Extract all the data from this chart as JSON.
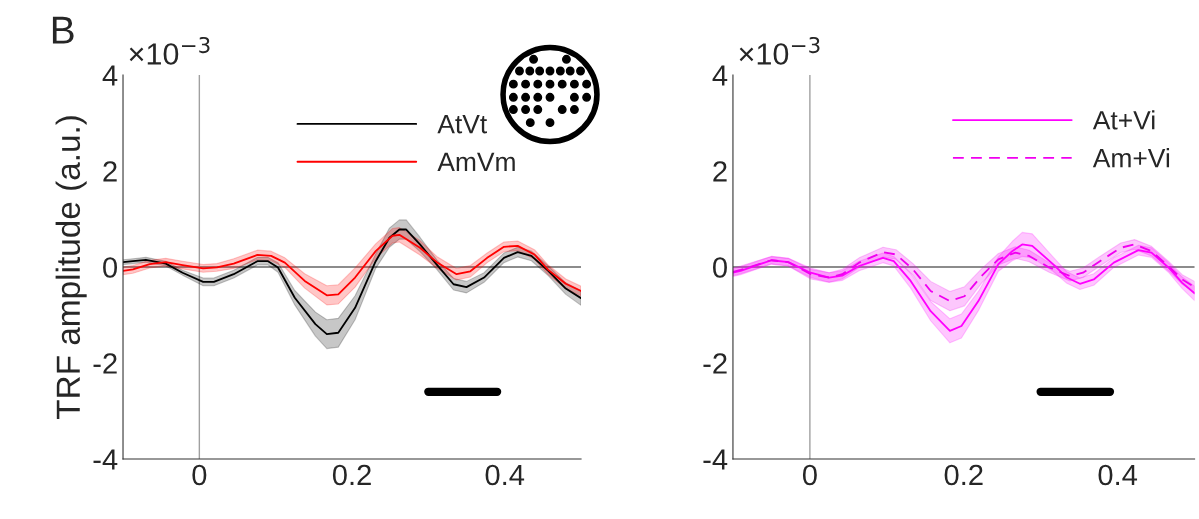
{
  "chart_data": [
    {
      "type": "line",
      "title": "B",
      "ylabel": "TRF amplitude (a.u.)",
      "annotations": [
        "×10$^{−3}$"
      ],
      "xlim": [
        -0.1,
        0.5
      ],
      "xticks": [
        0,
        0.2,
        0.4
      ],
      "ylim": [
        -4,
        4
      ],
      "yticks": [
        -4,
        -2,
        0,
        2,
        4
      ],
      "grid": false,
      "legend": "top",
      "ref_lines": [
        {
          "axis": "x",
          "value": 0,
          "color": "#a0a0a0"
        },
        {
          "axis": "y",
          "value": 0,
          "color": "#8c8c8c"
        }
      ],
      "series": [
        {
          "name": "AtVt",
          "color": "#000000",
          "x": [
            -0.1,
            -0.087,
            -0.07,
            -0.044,
            -0.022,
            0.005,
            0.019,
            0.045,
            0.076,
            0.09,
            0.103,
            0.125,
            0.152,
            0.167,
            0.182,
            0.204,
            0.231,
            0.249,
            0.262,
            0.271,
            0.289,
            0.311,
            0.333,
            0.35,
            0.373,
            0.399,
            0.417,
            0.435,
            0.457,
            0.48,
            0.5
          ],
          "values": [
            0.1,
            0.12,
            0.15,
            0.07,
            -0.12,
            -0.31,
            -0.31,
            -0.15,
            0.12,
            0.12,
            -0.01,
            -0.64,
            -1.19,
            -1.4,
            -1.37,
            -0.85,
            0.12,
            0.61,
            0.78,
            0.78,
            0.47,
            0.05,
            -0.36,
            -0.42,
            -0.22,
            0.19,
            0.31,
            0.23,
            -0.08,
            -0.45,
            -0.65
          ],
          "lower": [
            0.05,
            0.07,
            0.1,
            0.02,
            -0.17,
            -0.39,
            -0.39,
            -0.23,
            0.04,
            0.04,
            -0.11,
            -0.79,
            -1.44,
            -1.7,
            -1.67,
            -1.1,
            -0.03,
            0.41,
            0.58,
            0.58,
            0.32,
            -0.05,
            -0.48,
            -0.54,
            -0.32,
            0.09,
            0.21,
            0.13,
            -0.18,
            -0.57,
            -0.8
          ],
          "upper": [
            0.15,
            0.17,
            0.2,
            0.12,
            -0.07,
            -0.23,
            -0.23,
            -0.07,
            0.2,
            0.2,
            0.09,
            -0.49,
            -0.94,
            -1.1,
            -1.07,
            -0.6,
            0.27,
            0.81,
            0.98,
            0.98,
            0.62,
            0.15,
            -0.24,
            -0.3,
            -0.12,
            0.29,
            0.41,
            0.33,
            0.02,
            -0.33,
            -0.5
          ]
        },
        {
          "name": "AmVm",
          "color": "#ff0000",
          "x": [
            -0.1,
            -0.087,
            -0.065,
            -0.044,
            -0.022,
            0.005,
            0.023,
            0.045,
            0.076,
            0.094,
            0.112,
            0.138,
            0.167,
            0.182,
            0.204,
            0.231,
            0.253,
            0.262,
            0.289,
            0.311,
            0.337,
            0.355,
            0.377,
            0.399,
            0.417,
            0.439,
            0.457,
            0.48,
            0.5
          ],
          "values": [
            -0.08,
            -0.05,
            0.06,
            0.1,
            0.04,
            -0.03,
            -0.01,
            0.07,
            0.25,
            0.23,
            0.09,
            -0.29,
            -0.59,
            -0.57,
            -0.22,
            0.33,
            0.65,
            0.67,
            0.4,
            0.1,
            -0.15,
            -0.09,
            0.19,
            0.42,
            0.44,
            0.26,
            -0.06,
            -0.35,
            -0.5
          ],
          "lower": [
            -0.16,
            -0.13,
            -0.02,
            0.02,
            -0.04,
            -0.11,
            -0.09,
            -0.03,
            0.15,
            0.13,
            -0.01,
            -0.44,
            -0.79,
            -0.77,
            -0.42,
            0.18,
            0.5,
            0.52,
            0.25,
            -0.02,
            -0.27,
            -0.21,
            0.09,
            0.32,
            0.34,
            0.16,
            -0.16,
            -0.45,
            -0.6
          ],
          "upper": [
            0,
            0.03,
            0.14,
            0.18,
            0.12,
            0.05,
            0.07,
            0.17,
            0.35,
            0.33,
            0.19,
            -0.14,
            -0.39,
            -0.37,
            -0.02,
            0.48,
            0.8,
            0.82,
            0.55,
            0.22,
            -0.03,
            0.03,
            0.29,
            0.52,
            0.54,
            0.36,
            0.04,
            -0.25,
            -0.4
          ]
        },
        {
          "color": "#000000",
          "x": [
            0.3,
            0.39
          ],
          "values": [
            -2.6,
            -2.6
          ]
        }
      ]
    },
    {
      "type": "line",
      "annotations": [
        "×10$^{−3}$"
      ],
      "xlim": [
        -0.1,
        0.5
      ],
      "xticks": [
        0,
        0.2,
        0.4
      ],
      "ylim": [
        -4,
        4
      ],
      "yticks": [
        -4,
        -2,
        0,
        2,
        4
      ],
      "grid": false,
      "legend": "top right",
      "ref_lines": [
        {
          "axis": "x",
          "value": 0,
          "color": "#a0a0a0"
        },
        {
          "axis": "y",
          "value": 0,
          "color": "#8c8c8c"
        }
      ],
      "series": [
        {
          "name": "At+Vi",
          "color": "#ff00ff",
          "line_style": "solid",
          "x": [
            -0.1,
            -0.09,
            -0.05,
            -0.028,
            0.001,
            0.025,
            0.042,
            0.064,
            0.095,
            0.109,
            0.131,
            0.157,
            0.182,
            0.197,
            0.219,
            0.245,
            0.263,
            0.276,
            0.289,
            0.316,
            0.334,
            0.351,
            0.369,
            0.395,
            0.427,
            0.444,
            0.466,
            0.484,
            0.5
          ],
          "values": [
            -0.12,
            -0.08,
            0.14,
            0.1,
            -0.12,
            -0.22,
            -0.18,
            0.02,
            0.19,
            0.12,
            -0.29,
            -0.92,
            -1.33,
            -1.23,
            -0.71,
            0.06,
            0.33,
            0.47,
            0.44,
            0.06,
            -0.22,
            -0.35,
            -0.26,
            0.09,
            0.35,
            0.3,
            -0.01,
            -0.33,
            -0.55
          ],
          "lower": [
            -0.2,
            -0.16,
            0.06,
            0.02,
            -0.22,
            -0.32,
            -0.28,
            -0.08,
            0.09,
            0.02,
            -0.44,
            -1.12,
            -1.58,
            -1.48,
            -0.91,
            -0.09,
            0.13,
            0.22,
            0.19,
            -0.09,
            -0.34,
            -0.47,
            -0.38,
            -0.01,
            0.25,
            0.2,
            -0.11,
            -0.45,
            -0.7
          ],
          "upper": [
            -0.04,
            0,
            0.22,
            0.18,
            -0.02,
            -0.12,
            -0.08,
            0.12,
            0.29,
            0.22,
            -0.14,
            -0.72,
            -1.08,
            -0.98,
            -0.51,
            0.21,
            0.53,
            0.72,
            0.69,
            0.21,
            -0.1,
            -0.23,
            -0.14,
            0.19,
            0.45,
            0.4,
            0.09,
            -0.21,
            -0.4
          ]
        },
        {
          "name": "Am+Vi",
          "color": "#f000f0",
          "line_style": "dashed",
          "x": [
            -0.1,
            -0.09,
            -0.05,
            -0.028,
            0.001,
            0.025,
            0.042,
            0.064,
            0.095,
            0.112,
            0.134,
            0.157,
            0.182,
            0.201,
            0.223,
            0.245,
            0.267,
            0.285,
            0.311,
            0.338,
            0.355,
            0.377,
            0.404,
            0.422,
            0.444,
            0.466,
            0.484,
            0.5
          ],
          "values": [
            -0.1,
            -0.06,
            0.14,
            0.1,
            -0.15,
            -0.22,
            -0.15,
            0.09,
            0.31,
            0.26,
            -0.05,
            -0.5,
            -0.71,
            -0.61,
            -0.19,
            0.16,
            0.3,
            0.23,
            -0.01,
            -0.19,
            -0.12,
            0.12,
            0.4,
            0.47,
            0.33,
            0.02,
            -0.26,
            -0.42
          ],
          "lower": [
            -0.18,
            -0.14,
            0.06,
            0.02,
            -0.25,
            -0.32,
            -0.25,
            -0.01,
            0.21,
            0.16,
            -0.17,
            -0.7,
            -0.91,
            -0.81,
            -0.34,
            0.04,
            0.18,
            0.11,
            -0.11,
            -0.29,
            -0.22,
            0.02,
            0.3,
            0.37,
            0.23,
            -0.08,
            -0.36,
            -0.54
          ],
          "upper": [
            -0.02,
            0.02,
            0.22,
            0.18,
            -0.05,
            -0.12,
            -0.05,
            0.19,
            0.41,
            0.36,
            0.07,
            -0.3,
            -0.51,
            -0.41,
            -0.04,
            0.28,
            0.42,
            0.35,
            0.09,
            -0.09,
            -0.02,
            0.22,
            0.5,
            0.57,
            0.43,
            0.12,
            -0.16,
            -0.3
          ]
        },
        {
          "color": "#000000",
          "x": [
            0.3,
            0.39
          ],
          "values": [
            -2.6,
            -2.6
          ]
        }
      ]
    }
  ]
}
